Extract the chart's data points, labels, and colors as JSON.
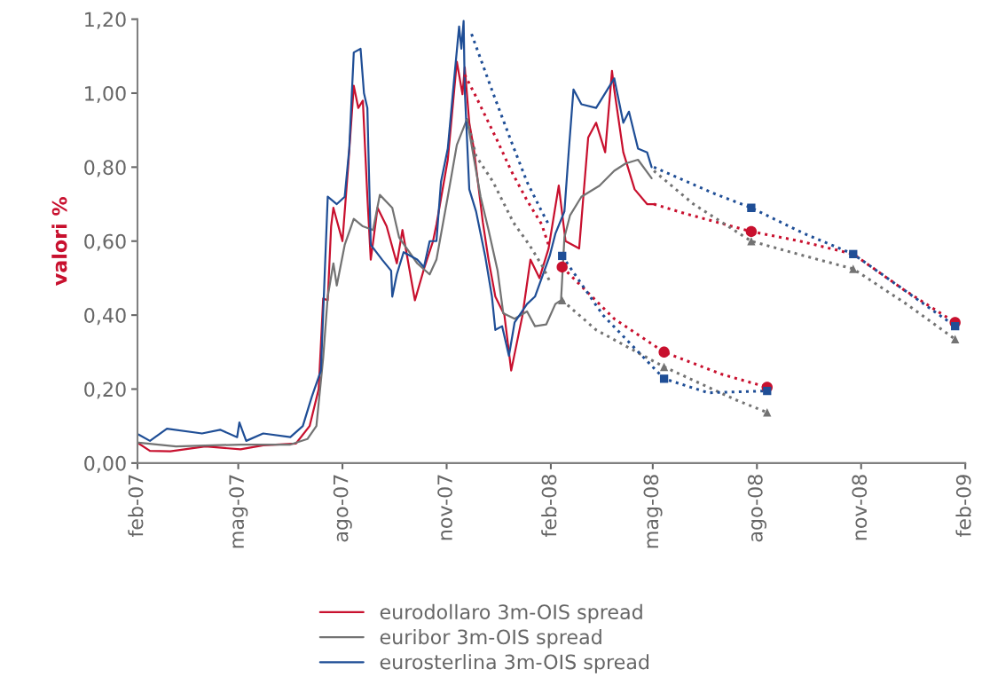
{
  "chart_data": {
    "type": "line",
    "ylabel": "valori %",
    "xlim": [
      "2007-02-01",
      "2009-02-01"
    ],
    "xticks": [
      {
        "value": "2007-02-01",
        "label": "feb-07"
      },
      {
        "value": "2007-05-01",
        "label": "mag-07"
      },
      {
        "value": "2007-08-01",
        "label": "ago-07"
      },
      {
        "value": "2007-11-01",
        "label": "nov-07"
      },
      {
        "value": "2008-02-01",
        "label": "feb-08"
      },
      {
        "value": "2008-05-01",
        "label": "mag-08"
      },
      {
        "value": "2008-08-01",
        "label": "ago-08"
      },
      {
        "value": "2008-11-01",
        "label": "nov-08"
      },
      {
        "value": "2009-02-01",
        "label": "feb-09"
      }
    ],
    "ylim": [
      0,
      1.2
    ],
    "yticks": [
      {
        "value": 0,
        "label": "0,00"
      },
      {
        "value": 0.2,
        "label": "0,20"
      },
      {
        "value": 0.4,
        "label": "0,40"
      },
      {
        "value": 0.6,
        "label": "0,60"
      },
      {
        "value": 0.8,
        "label": "0,80"
      },
      {
        "value": 1.0,
        "label": "1,00"
      },
      {
        "value": 1.2,
        "label": "1,20"
      }
    ],
    "grid": false,
    "legend": "bottom",
    "marker": "none",
    "line_style": "solid",
    "series": [
      {
        "name": "eurodollaro 3m-OIS spread",
        "color": "#c8102e",
        "x": [
          "2007-02-02",
          "2007-02-12",
          "2007-03-02",
          "2007-04-02",
          "2007-05-03",
          "2007-05-23",
          "2007-06-21",
          "2007-07-03",
          "2007-07-11",
          "2007-07-15",
          "2007-07-19",
          "2007-07-22",
          "2007-07-24",
          "2007-08-01",
          "2007-08-06",
          "2007-08-11",
          "2007-08-15",
          "2007-08-19",
          "2007-08-23",
          "2007-08-26",
          "2007-09-01",
          "2007-09-09",
          "2007-09-18",
          "2007-09-23",
          "2007-10-04",
          "2007-10-12",
          "2007-10-20",
          "2007-10-23",
          "2007-11-02",
          "2007-11-10",
          "2007-11-15",
          "2007-11-17",
          "2007-11-21",
          "2007-11-25",
          "2007-12-03",
          "2007-12-08",
          "2007-12-14",
          "2007-12-22",
          "2007-12-28",
          "2008-01-07",
          "2008-01-14",
          "2008-01-22",
          "2008-01-30",
          "2008-02-08",
          "2008-02-14",
          "2008-02-26",
          "2008-03-05",
          "2008-03-12",
          "2008-03-20",
          "2008-03-26",
          "2008-03-28",
          "2008-04-05",
          "2008-04-15",
          "2008-04-26",
          "2008-05-02"
        ],
        "values": [
          0.053,
          0.033,
          0.032,
          0.045,
          0.037,
          0.048,
          0.053,
          0.1,
          0.2,
          0.445,
          0.44,
          0.64,
          0.69,
          0.6,
          0.8,
          1.02,
          0.96,
          0.98,
          0.72,
          0.55,
          0.69,
          0.64,
          0.54,
          0.63,
          0.44,
          0.525,
          0.6,
          0.645,
          0.82,
          1.085,
          0.997,
          1.07,
          0.92,
          0.85,
          0.65,
          0.55,
          0.45,
          0.4,
          0.25,
          0.4,
          0.55,
          0.5,
          0.58,
          0.75,
          0.6,
          0.58,
          0.88,
          0.92,
          0.84,
          1.06,
          1.01,
          0.84,
          0.74,
          0.7,
          0.7
        ]
      },
      {
        "name": "euribor 3m-OIS spread",
        "color": "#737373",
        "x": [
          "2007-02-02",
          "2007-03-07",
          "2007-05-03",
          "2007-06-16",
          "2007-07-01",
          "2007-07-09",
          "2007-07-15",
          "2007-07-19",
          "2007-07-24",
          "2007-07-27",
          "2007-08-03",
          "2007-08-11",
          "2007-08-19",
          "2007-08-28",
          "2007-09-03",
          "2007-09-14",
          "2007-09-20",
          "2007-10-06",
          "2007-10-17",
          "2007-10-23",
          "2007-11-02",
          "2007-11-10",
          "2007-11-19",
          "2007-12-01",
          "2007-12-08",
          "2007-12-16",
          "2007-12-21",
          "2007-12-31",
          "2008-01-11",
          "2008-01-18",
          "2008-01-28",
          "2008-02-05",
          "2008-02-10",
          "2008-02-13",
          "2008-02-18",
          "2008-02-28",
          "2008-03-15",
          "2008-03-28",
          "2008-04-07",
          "2008-04-18",
          "2008-04-30"
        ],
        "values": [
          0.055,
          0.045,
          0.05,
          0.05,
          0.065,
          0.1,
          0.285,
          0.45,
          0.54,
          0.48,
          0.59,
          0.66,
          0.64,
          0.63,
          0.725,
          0.69,
          0.61,
          0.54,
          0.51,
          0.55,
          0.72,
          0.86,
          0.93,
          0.72,
          0.63,
          0.52,
          0.405,
          0.39,
          0.41,
          0.37,
          0.375,
          0.43,
          0.44,
          0.61,
          0.67,
          0.72,
          0.75,
          0.79,
          0.81,
          0.82,
          0.77
        ]
      },
      {
        "name": "eurosterlina 3m-OIS spread",
        "color": "#1f4e96",
        "x": [
          "2007-02-02",
          "2007-02-12",
          "2007-02-27",
          "2007-03-30",
          "2007-04-15",
          "2007-04-30",
          "2007-05-02",
          "2007-05-08",
          "2007-05-23",
          "2007-06-16",
          "2007-06-27",
          "2007-07-05",
          "2007-07-13",
          "2007-07-19",
          "2007-07-27",
          "2007-08-03",
          "2007-08-07",
          "2007-08-11",
          "2007-08-17",
          "2007-08-20",
          "2007-08-23",
          "2007-08-26",
          "2007-09-05",
          "2007-09-13",
          "2007-09-14",
          "2007-09-18",
          "2007-09-24",
          "2007-10-06",
          "2007-10-12",
          "2007-10-17",
          "2007-10-23",
          "2007-10-27",
          "2007-11-02",
          "2007-11-08",
          "2007-11-12",
          "2007-11-14",
          "2007-11-16",
          "2007-11-17",
          "2007-11-21",
          "2007-11-27",
          "2007-12-05",
          "2007-12-11",
          "2007-12-14",
          "2007-12-20",
          "2007-12-26",
          "2007-12-31",
          "2008-01-11",
          "2008-01-18",
          "2008-01-31",
          "2008-02-05",
          "2008-02-13",
          "2008-02-17",
          "2008-02-21",
          "2008-02-28",
          "2008-03-12",
          "2008-03-22",
          "2008-03-28",
          "2008-04-05",
          "2008-04-10",
          "2008-04-18",
          "2008-04-26",
          "2008-04-30"
        ],
        "values": [
          0.077,
          0.06,
          0.093,
          0.08,
          0.09,
          0.07,
          0.11,
          0.06,
          0.08,
          0.07,
          0.1,
          0.18,
          0.25,
          0.72,
          0.7,
          0.72,
          0.85,
          1.11,
          1.12,
          1.0,
          0.96,
          0.59,
          0.55,
          0.52,
          0.45,
          0.51,
          0.57,
          0.55,
          0.53,
          0.6,
          0.6,
          0.76,
          0.85,
          1.05,
          1.18,
          1.12,
          1.195,
          1.01,
          0.74,
          0.68,
          0.56,
          0.45,
          0.36,
          0.37,
          0.29,
          0.38,
          0.43,
          0.45,
          0.56,
          0.62,
          0.68,
          0.85,
          1.01,
          0.97,
          0.96,
          1.01,
          1.04,
          0.92,
          0.95,
          0.85,
          0.84,
          0.8
        ]
      },
      {
        "type": "line",
        "color": "#c8102e",
        "line_style": "dotted",
        "x": [
          "2007-11-17",
          "2007-11-27",
          "2007-12-16",
          "2007-12-28",
          "2008-01-11",
          "2008-01-24",
          "2008-01-31"
        ],
        "values": [
          1.05,
          0.99,
          0.87,
          0.79,
          0.71,
          0.645,
          0.58
        ]
      },
      {
        "type": "line",
        "color": "#737373",
        "line_style": "dotted",
        "x": [
          "2007-11-19",
          "2007-11-27",
          "2007-12-12",
          "2007-12-30",
          "2008-01-13",
          "2008-01-25",
          "2008-02-01"
        ],
        "values": [
          0.93,
          0.83,
          0.76,
          0.65,
          0.59,
          0.53,
          0.485
        ]
      },
      {
        "type": "line",
        "color": "#1f4e96",
        "line_style": "dotted",
        "x": [
          "2007-11-23",
          "2007-12-12",
          "2007-12-28",
          "2008-01-11",
          "2008-01-24",
          "2008-01-31"
        ],
        "values": [
          1.16,
          1.0,
          0.87,
          0.76,
          0.68,
          0.64
        ]
      },
      {
        "type": "line",
        "color": "#c8102e",
        "line_style": "dotted",
        "x": [
          "2008-02-11",
          "2008-03-28",
          "2008-05-11",
          "2008-07-01",
          "2008-08-10"
        ],
        "values": [
          0.53,
          0.39,
          0.3,
          0.24,
          0.205
        ]
      },
      {
        "type": "line",
        "color": "#737373",
        "line_style": "dotted",
        "x": [
          "2008-02-11",
          "2008-03-12",
          "2008-05-11",
          "2008-07-14",
          "2008-08-10"
        ],
        "values": [
          0.44,
          0.36,
          0.26,
          0.17,
          0.137
        ]
      },
      {
        "type": "line",
        "color": "#1f4e96",
        "line_style": "dotted",
        "x": [
          "2008-02-11",
          "2008-03-18",
          "2008-05-11",
          "2008-06-19",
          "2008-08-10"
        ],
        "values": [
          0.56,
          0.4,
          0.228,
          0.19,
          0.195
        ]
      },
      {
        "type": "line",
        "color": "#c8102e",
        "line_style": "dotted",
        "x": [
          "2008-05-02",
          "2008-05-29",
          "2008-07-27",
          "2008-09-08",
          "2008-10-25",
          "2008-12-08",
          "2009-01-23"
        ],
        "values": [
          0.7,
          0.675,
          0.626,
          0.6,
          0.565,
          0.47,
          0.38
        ]
      },
      {
        "type": "line",
        "color": "#737373",
        "line_style": "dotted",
        "x": [
          "2008-05-02",
          "2008-06-06",
          "2008-07-27",
          "2008-09-06",
          "2008-10-25",
          "2008-12-11",
          "2009-01-23"
        ],
        "values": [
          0.79,
          0.7,
          0.6,
          0.565,
          0.525,
          0.43,
          0.335
        ]
      },
      {
        "type": "line",
        "color": "#1f4e96",
        "line_style": "dotted",
        "x": [
          "2008-05-02",
          "2008-06-23",
          "2008-07-27",
          "2008-09-12",
          "2008-10-25",
          "2008-12-08",
          "2009-01-23"
        ],
        "values": [
          0.8,
          0.73,
          0.69,
          0.62,
          0.565,
          0.47,
          0.37
        ]
      },
      {
        "type": "scatter",
        "color": "#c8102e",
        "marker": "circle",
        "x": [
          "2008-02-11",
          "2008-05-11",
          "2008-08-10",
          "2008-07-27",
          "2009-01-23"
        ],
        "values": [
          0.53,
          0.3,
          0.205,
          0.626,
          0.38
        ]
      },
      {
        "type": "scatter",
        "color": "#737373",
        "marker": "triangle",
        "x": [
          "2008-02-11",
          "2008-05-11",
          "2008-08-10",
          "2008-07-27",
          "2008-10-25",
          "2009-01-23"
        ],
        "values": [
          0.44,
          0.26,
          0.137,
          0.6,
          0.525,
          0.335
        ]
      },
      {
        "type": "scatter",
        "color": "#1f4e96",
        "marker": "square",
        "x": [
          "2008-02-11",
          "2008-05-11",
          "2008-08-10",
          "2008-07-27",
          "2008-10-25",
          "2009-01-23"
        ],
        "values": [
          0.56,
          0.228,
          0.195,
          0.69,
          0.565,
          0.37
        ]
      }
    ]
  }
}
